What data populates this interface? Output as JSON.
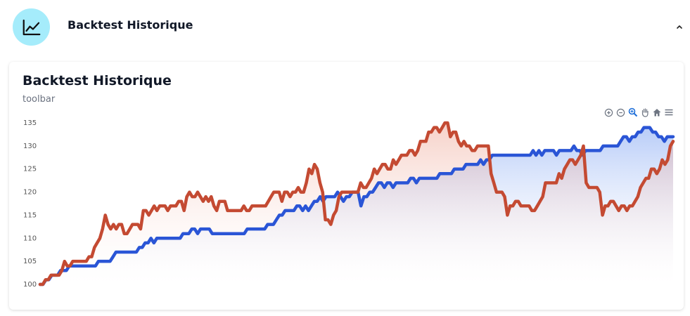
{
  "header": {
    "icon": "line-chart-icon",
    "title": "Backtest Historique",
    "toggle_icon": "chevron-up-icon"
  },
  "card": {
    "title": "Backtest Historique",
    "subtitle": "toolbar",
    "toolbar": [
      "zoom-in-icon",
      "zoom-out-icon",
      "zoom-select-icon",
      "pan-hand-icon",
      "home-reset-icon",
      "menu-icon"
    ]
  },
  "colors": {
    "accent_icon_bg": "#a5ecfb",
    "series_blue": "#2a55d6",
    "series_red": "#c44a32"
  },
  "chart_data": {
    "type": "line",
    "ylim": [
      100,
      135
    ],
    "yticks": [
      100,
      105,
      110,
      115,
      120,
      125,
      130,
      135
    ],
    "grid": false,
    "series": [
      {
        "values": [
          100,
          100,
          101,
          101,
          102,
          102,
          102,
          103,
          103,
          103,
          104,
          104,
          104,
          104,
          104,
          104,
          104,
          104,
          104,
          104,
          105,
          105,
          105,
          105,
          105,
          106,
          107,
          107,
          107,
          107,
          107,
          107,
          107,
          107,
          108,
          108,
          109,
          109,
          110,
          109,
          110,
          110,
          110,
          110,
          110,
          110,
          110,
          110,
          110,
          111,
          111,
          111,
          112,
          112,
          111,
          112,
          112,
          112,
          112,
          111,
          111,
          111,
          111,
          111,
          111,
          111,
          111,
          111,
          111,
          111,
          111,
          112,
          112,
          112,
          112,
          112,
          112,
          112,
          113,
          113,
          113,
          114,
          115,
          115,
          116,
          116,
          116,
          116,
          117,
          117,
          116,
          117,
          116,
          117,
          118,
          118,
          119,
          118,
          119,
          119,
          119,
          119,
          120,
          119,
          118,
          119,
          119,
          120,
          120,
          120,
          117,
          119,
          119,
          120,
          120,
          121,
          122,
          122,
          121,
          122,
          122,
          121,
          122,
          122,
          122,
          122,
          122,
          123,
          123,
          122,
          123,
          123,
          123,
          123,
          123,
          123,
          123,
          124,
          124,
          124,
          124,
          124,
          125,
          125,
          125,
          125,
          126,
          126,
          126,
          126,
          126,
          127,
          126,
          127,
          127,
          128,
          128,
          128,
          128,
          128,
          128,
          128,
          128,
          128,
          128,
          128,
          128,
          128,
          128,
          129,
          128,
          129,
          128,
          129,
          129,
          129,
          129,
          128,
          129,
          129,
          129,
          129,
          129,
          130,
          129,
          129,
          128,
          129,
          129,
          129,
          129,
          129,
          129,
          130,
          130,
          130,
          130,
          130,
          130,
          131,
          132,
          132,
          131,
          132,
          132,
          133,
          133,
          134,
          134,
          134,
          133,
          133,
          132,
          132,
          131,
          132,
          132,
          132
        ]
      },
      {
        "values": [
          100,
          100,
          101,
          101,
          102,
          102,
          102,
          102,
          103,
          105,
          104,
          104,
          105,
          105,
          105,
          105,
          105,
          105,
          106,
          106,
          108,
          109,
          110,
          112,
          115,
          113,
          112,
          113,
          112,
          113,
          113,
          111,
          111,
          112,
          113,
          113,
          113,
          112,
          116,
          116,
          115,
          116,
          117,
          116,
          117,
          117,
          117,
          116,
          117,
          117,
          117,
          118,
          118,
          116,
          119,
          120,
          119,
          119,
          120,
          119,
          118,
          119,
          118,
          119,
          117,
          116,
          118,
          118,
          118,
          116,
          116,
          116,
          116,
          116,
          116,
          117,
          116,
          116,
          117,
          117,
          117,
          117,
          117,
          117,
          118,
          119,
          120,
          120,
          120,
          118,
          120,
          120,
          119,
          120,
          120,
          121,
          120,
          120,
          122,
          125,
          124,
          126,
          125,
          122,
          120,
          114,
          114,
          113,
          115,
          116,
          119,
          120,
          120,
          120,
          120,
          120,
          120,
          120,
          122,
          121,
          121,
          122,
          123,
          125,
          124,
          125,
          126,
          126,
          125,
          125,
          127,
          126,
          127,
          128,
          128,
          128,
          129,
          129,
          128,
          129,
          131,
          131,
          131,
          133,
          133,
          134,
          134,
          133,
          134,
          135,
          135,
          132,
          133,
          133,
          131,
          130,
          131,
          130,
          130,
          129,
          129,
          130,
          130,
          130,
          130,
          130,
          124,
          122,
          120,
          120,
          120,
          119,
          115,
          117,
          117,
          118,
          118,
          117,
          117,
          117,
          117,
          116,
          116,
          117,
          118,
          119,
          122,
          122,
          122,
          122,
          122,
          124,
          123,
          125,
          126,
          127,
          127,
          126,
          127,
          128,
          130,
          122,
          121,
          121,
          121,
          121,
          120,
          115,
          117,
          117,
          118,
          118,
          117,
          116,
          117,
          117,
          116,
          117,
          117,
          118,
          119,
          121,
          122,
          123,
          123,
          125,
          125,
          124,
          125,
          127,
          126,
          127,
          130,
          131
        ]
      }
    ]
  }
}
